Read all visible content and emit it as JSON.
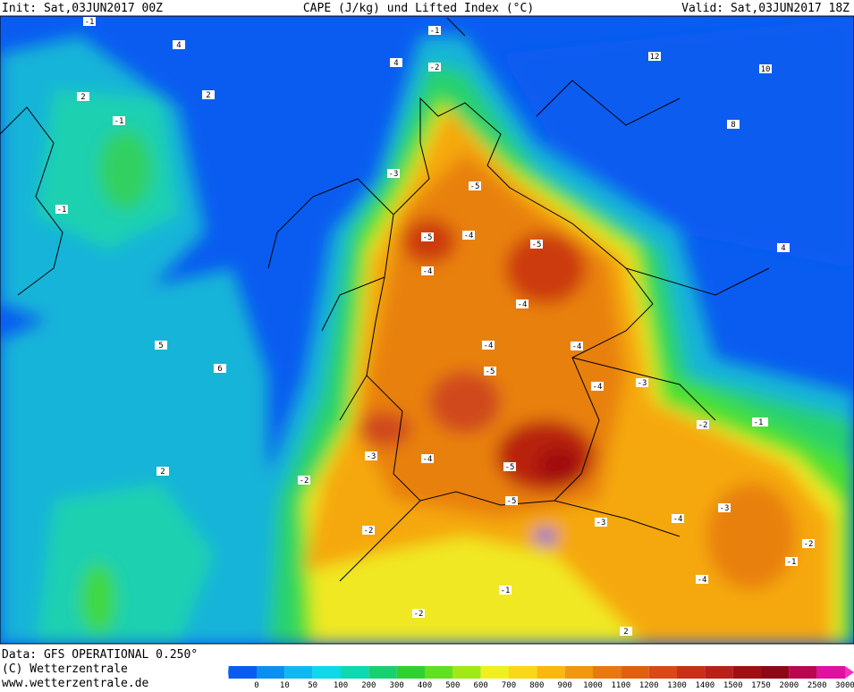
{
  "header": {
    "init": "Init: Sat,03JUN2017 00Z",
    "title": "CAPE (J/kg) und Lifted Index (°C)",
    "valid": "Valid: Sat,03JUN2017 18Z"
  },
  "footer": {
    "source": "Data: GFS OPERATIONAL 0.250°",
    "copyright": "(C) Wetterzentrale",
    "url": "www.wetterzentrale.de"
  },
  "colorbar": {
    "ticks": [
      0,
      10,
      50,
      100,
      200,
      300,
      400,
      500,
      600,
      700,
      800,
      900,
      1000,
      1100,
      1200,
      1300,
      1400,
      1500,
      1750,
      2000,
      2500,
      3000
    ]
  },
  "map": {
    "contour_labels": [
      "-1",
      "4",
      "4",
      "-1",
      "-2",
      "-1",
      "2",
      "2",
      "-1",
      "-3",
      "-5",
      "-5",
      "-4",
      "-5",
      "-4",
      "-4",
      "-4",
      "-5",
      "-4",
      "-4",
      "-3",
      "-4",
      "-5",
      "-5",
      "-3",
      "-2",
      "-2",
      "-3",
      "-4",
      "-3",
      "-2",
      "-1",
      "2",
      "12",
      "10",
      "8",
      "4",
      "6",
      "5",
      "-2",
      "-1",
      "2",
      "-2",
      "-1",
      "2",
      "-4"
    ]
  }
}
